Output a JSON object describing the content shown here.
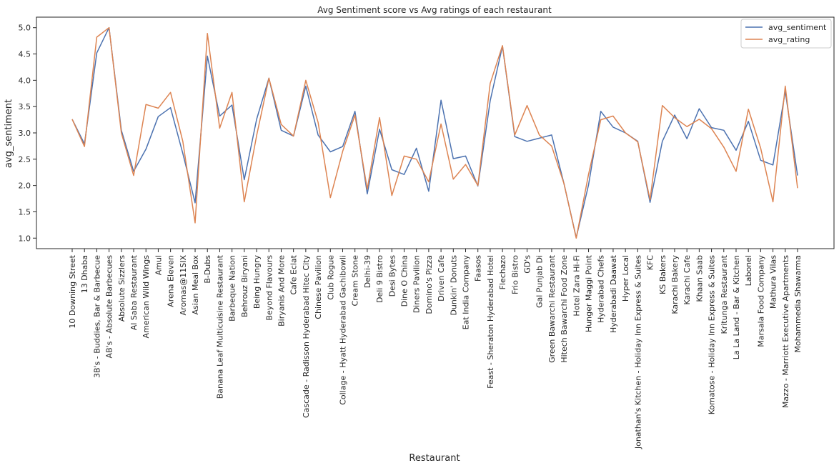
{
  "chart_data": {
    "type": "line",
    "title": "Avg Sentiment score vs Avg ratings of each restaurant",
    "xlabel": "Restaurant",
    "ylabel": "avg_sentiment",
    "ylim": [
      0.8,
      5.2
    ],
    "yticks": [
      "1.0",
      "1.5",
      "2.0",
      "2.5",
      "3.0",
      "3.5",
      "4.0",
      "4.5",
      "5.0"
    ],
    "grid": false,
    "legend_position": "top-right",
    "categories": [
      "10 Downing Street",
      "13 Dhaba",
      "3B's - Buddies, Bar & Barbecue",
      "AB's - Absolute Barbecues",
      "Absolute Sizzlers",
      "Al Saba Restaurant",
      "American Wild Wings",
      "Amul",
      "Arena Eleven",
      "Aromas@11SIX",
      "Asian Meal Box",
      "B-Dubs",
      "Banana Leaf Multicuisine Restaurant",
      "Barbeque Nation",
      "Behrouz Biryani",
      "Being Hungry",
      "Beyond Flavours",
      "Biryanis And More",
      "Cafe Eclat",
      "Cascade - Radisson Hyderabad Hitec City",
      "Chinese Pavilion",
      "Club Rogue",
      "Collage - Hyatt Hyderabad Gachibowli",
      "Cream Stone",
      "Delhi-39",
      "Deli 9 Bistro",
      "Desi Bytes",
      "Dine O China",
      "Diners Pavilion",
      "Domino's Pizza",
      "Driven Cafe",
      "Dunkin' Donuts",
      "Eat India Company",
      "Faasos",
      "Feast - Sheraton Hyderabad Hotel",
      "Flechazo",
      "Frio Bistro",
      "GD's",
      "Gal Punjab Di",
      "Green Bawarchi Restaurant",
      "Hitech Bawarchi Food Zone",
      "Hotel Zara Hi-Fi",
      "Hunger Maggi Point",
      "Hyderabad Chefs",
      "Hyderabadi Daawat",
      "Hyper Local",
      "Jonathan's Kitchen - Holiday Inn Express & Suites",
      "KFC",
      "KS Bakers",
      "Karachi Bakery",
      "Karachi Cafe",
      "Khaan Saab",
      "Komatose - Holiday Inn Express & Suites",
      "Kritunga Restaurant",
      "La La Land - Bar & Kitchen",
      "Labonel",
      "Marsala Food Company",
      "Mathura Vilas",
      "Mazzo - Marriott Executive Apartments",
      "Mohammedia Shawarma"
    ],
    "series": [
      {
        "name": "avg_sentiment",
        "color": "#4c72b0",
        "values": [
          3.26,
          2.79,
          4.52,
          5.0,
          3.05,
          2.27,
          2.69,
          3.31,
          3.48,
          2.61,
          1.67,
          4.46,
          3.32,
          3.53,
          2.11,
          3.26,
          4.04,
          3.05,
          2.94,
          3.89,
          2.96,
          2.64,
          2.74,
          3.41,
          1.84,
          3.07,
          2.3,
          2.21,
          2.71,
          1.89,
          3.62,
          2.51,
          2.56,
          1.99,
          3.61,
          4.65,
          2.93,
          2.84,
          2.9,
          2.96,
          2.04,
          1.01,
          2.01,
          3.41,
          3.11,
          3.0,
          2.84,
          1.68,
          2.84,
          3.34,
          2.89,
          3.46,
          3.1,
          3.05,
          2.67,
          3.22,
          2.48,
          2.39,
          3.79,
          2.19
        ]
      },
      {
        "name": "avg_rating",
        "color": "#dd8452",
        "values": [
          3.26,
          2.74,
          4.82,
          5.0,
          3.0,
          2.19,
          3.54,
          3.47,
          3.77,
          2.84,
          1.29,
          4.89,
          3.09,
          3.77,
          1.69,
          2.95,
          4.04,
          3.16,
          2.94,
          4.0,
          3.2,
          1.77,
          2.65,
          3.34,
          1.93,
          3.29,
          1.81,
          2.56,
          2.5,
          2.07,
          3.17,
          2.12,
          2.4,
          2.0,
          3.94,
          4.66,
          2.96,
          3.52,
          2.96,
          2.75,
          2.04,
          1.0,
          2.21,
          3.25,
          3.32,
          3.0,
          2.83,
          1.73,
          3.52,
          3.29,
          3.12,
          3.26,
          3.08,
          2.73,
          2.27,
          3.45,
          2.71,
          1.69,
          3.89,
          1.95
        ]
      }
    ]
  }
}
